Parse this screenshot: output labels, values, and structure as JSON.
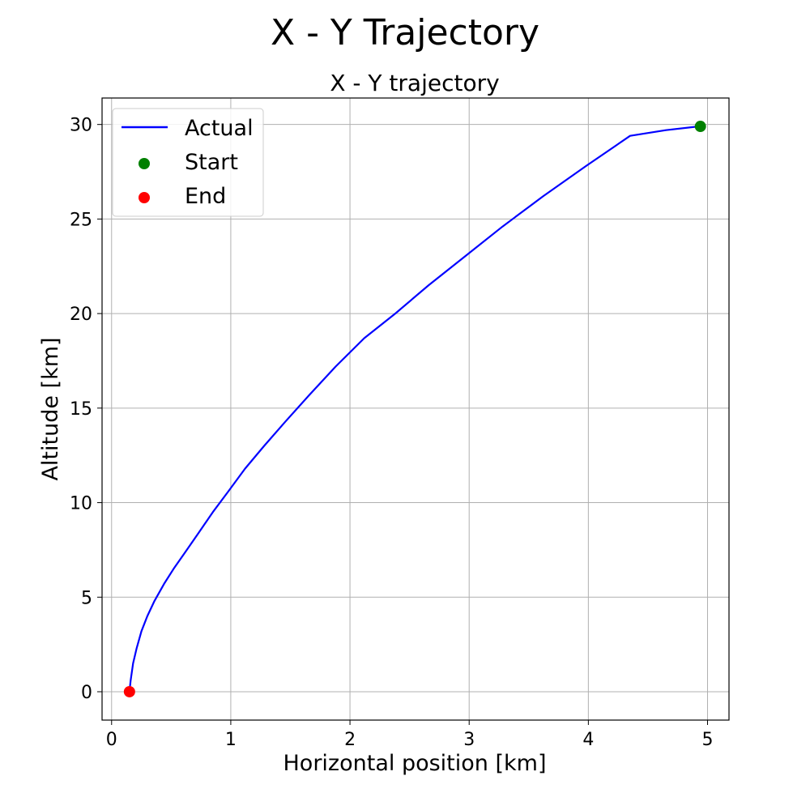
{
  "figure_title": "X - Y Trajectory",
  "chart_data": {
    "type": "line",
    "title": "X - Y trajectory",
    "xlabel": "Horizontal position [km]",
    "ylabel": "Altitude [km]",
    "xlim": [
      -0.08,
      5.18
    ],
    "ylim": [
      -1.5,
      31.4
    ],
    "xticks": [
      0,
      1,
      2,
      3,
      4,
      5
    ],
    "yticks": [
      0,
      5,
      10,
      15,
      20,
      25,
      30
    ],
    "grid": true,
    "legend_position": "top-left",
    "series": [
      {
        "name": "Actual",
        "kind": "line",
        "color": "#0000ff",
        "x": [
          0.15,
          0.16,
          0.18,
          0.21,
          0.25,
          0.3,
          0.36,
          0.44,
          0.52,
          0.62,
          0.73,
          0.85,
          0.98,
          1.12,
          1.28,
          1.46,
          1.66,
          1.88,
          2.12,
          2.38,
          2.66,
          2.96,
          3.28,
          3.62,
          3.98,
          4.35,
          4.65,
          4.93
        ],
        "y": [
          0.0,
          0.6,
          1.5,
          2.3,
          3.2,
          4.0,
          4.8,
          5.7,
          6.5,
          7.4,
          8.4,
          9.5,
          10.6,
          11.8,
          13.0,
          14.3,
          15.7,
          17.2,
          18.7,
          20.0,
          21.5,
          23.0,
          24.6,
          26.2,
          27.8,
          29.4,
          29.7,
          29.9
        ]
      },
      {
        "name": "Start",
        "kind": "point",
        "color": "#008000",
        "x": [
          4.94
        ],
        "y": [
          29.9
        ]
      },
      {
        "name": "End",
        "kind": "point",
        "color": "#ff0000",
        "x": [
          0.15
        ],
        "y": [
          0.0
        ]
      }
    ]
  }
}
